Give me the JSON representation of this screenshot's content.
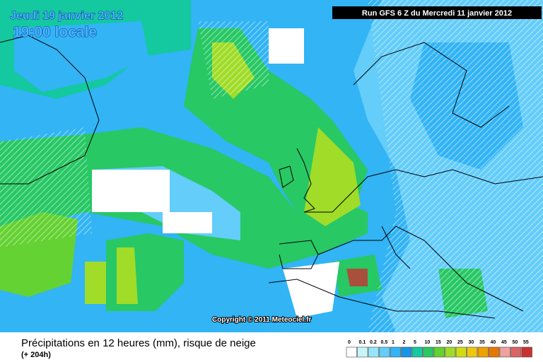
{
  "header": {
    "date": "Jeudi 19 janvier 2012",
    "time": "19:00 locale",
    "run": "Run GFS 6 Z du Mercredi 11 janvier 2012"
  },
  "copyright": "Copyright © 2011 Meteociel.fr",
  "footer": {
    "title": "Précipitations en 12 heures (mm), risque de neige",
    "lead": "(+ 204h)"
  },
  "legend": [
    {
      "value": 0,
      "color": "#ffffff"
    },
    {
      "value": 0.1,
      "color": "#c8f5fa"
    },
    {
      "value": 0.2,
      "color": "#96e6fa"
    },
    {
      "value": 0.5,
      "color": "#64cdfa"
    },
    {
      "value": 1,
      "color": "#32b4f5"
    },
    {
      "value": 2,
      "color": "#1496e6"
    },
    {
      "value": 5,
      "color": "#14c8a0"
    },
    {
      "value": 10,
      "color": "#28c864"
    },
    {
      "value": 15,
      "color": "#64d232"
    },
    {
      "value": 20,
      "color": "#a0dc28"
    },
    {
      "value": 25,
      "color": "#d2dc14"
    },
    {
      "value": 30,
      "color": "#f0c80a"
    },
    {
      "value": 35,
      "color": "#f0a000"
    },
    {
      "value": 40,
      "color": "#e67800"
    },
    {
      "value": 45,
      "color": "#f0a0a0"
    },
    {
      "value": 50,
      "color": "#dc6464"
    },
    {
      "value": 55,
      "color": "#c83232"
    }
  ]
}
